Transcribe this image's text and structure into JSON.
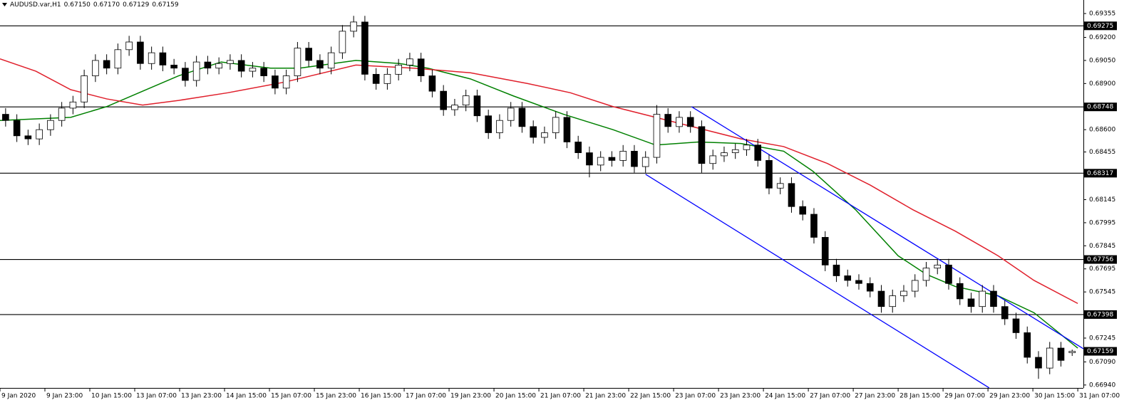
{
  "chart_data": {
    "type": "candlestick",
    "title": "AUDUSD.var,H1",
    "header_ohlc": [
      {
        "value": 0.6715,
        "label": "0.67150"
      },
      {
        "value": 0.6717,
        "label": "0.67170"
      },
      0.67129,
      0.67159
    ],
    "up_color": "#ffffff",
    "down_color": "#000000",
    "wick_color": "#000000",
    "open": [
      0.687,
      0.6866,
      0.6856,
      0.6854,
      0.686,
      0.6866,
      0.6874,
      0.6878,
      0.6895,
      0.6905,
      0.69,
      0.6912,
      0.6917,
      0.6903,
      0.691,
      0.6902,
      0.69,
      0.6892,
      0.6904,
      0.69,
      0.6903,
      0.6905,
      0.6898,
      0.69,
      0.6895,
      0.6887,
      0.6895,
      0.6913,
      0.6905,
      0.69,
      0.691,
      0.6924,
      0.693,
      0.6896,
      0.689,
      0.6896,
      0.6902,
      0.6906,
      0.6895,
      0.6885,
      0.6873,
      0.6876,
      0.6882,
      0.6869,
      0.6858,
      0.6866,
      0.6874,
      0.6862,
      0.6855,
      0.6858,
      0.6868,
      0.6852,
      0.6845,
      0.6837,
      0.6842,
      0.684,
      0.6846,
      0.6836,
      0.6842,
      0.687,
      0.6862,
      0.6868,
      0.6862,
      0.6838,
      0.6843,
      0.6845,
      0.6847,
      0.685,
      0.684,
      0.6822,
      0.6825,
      0.681,
      0.6805,
      0.679,
      0.6772,
      0.6765,
      0.6762,
      0.676,
      0.6755,
      0.6745,
      0.6752,
      0.6755,
      0.6762,
      0.677,
      0.6772,
      0.676,
      0.675,
      0.6745,
      0.6755,
      0.6745,
      0.6737,
      0.6728,
      0.6712,
      0.6705,
      0.6718,
      0.6715
    ],
    "high": [
      0.6874,
      0.687,
      0.686,
      0.6864,
      0.687,
      0.6878,
      0.6882,
      0.6899,
      0.6909,
      0.6909,
      0.6916,
      0.6921,
      0.6921,
      0.6914,
      0.6914,
      0.6906,
      0.6904,
      0.6908,
      0.6908,
      0.6907,
      0.6909,
      0.6909,
      0.6904,
      0.6904,
      0.6899,
      0.6899,
      0.6917,
      0.6917,
      0.6909,
      0.6914,
      0.6928,
      0.6934,
      0.6934,
      0.69,
      0.69,
      0.6906,
      0.691,
      0.691,
      0.6899,
      0.6889,
      0.688,
      0.6886,
      0.6886,
      0.6873,
      0.687,
      0.6878,
      0.6878,
      0.6866,
      0.6862,
      0.6872,
      0.6872,
      0.6856,
      0.6849,
      0.6846,
      0.6846,
      0.685,
      0.685,
      0.6846,
      0.6876,
      0.6874,
      0.6872,
      0.6872,
      0.6866,
      0.6847,
      0.6849,
      0.6851,
      0.6854,
      0.6854,
      0.6844,
      0.6829,
      0.6829,
      0.6814,
      0.6809,
      0.6794,
      0.6776,
      0.6769,
      0.6766,
      0.6764,
      0.6759,
      0.6756,
      0.6759,
      0.6766,
      0.6774,
      0.6776,
      0.6776,
      0.6764,
      0.6754,
      0.6759,
      0.6759,
      0.6749,
      0.6741,
      0.6732,
      0.6716,
      0.6722,
      0.6722,
      0.6717
    ],
    "low": [
      0.6862,
      0.6852,
      0.685,
      0.685,
      0.6856,
      0.6862,
      0.687,
      0.6874,
      0.6891,
      0.6896,
      0.6896,
      0.6908,
      0.6899,
      0.6899,
      0.6898,
      0.6896,
      0.6888,
      0.6888,
      0.6896,
      0.6896,
      0.6899,
      0.6894,
      0.6894,
      0.6891,
      0.6883,
      0.6883,
      0.6891,
      0.6901,
      0.6896,
      0.6896,
      0.6906,
      0.692,
      0.6892,
      0.6886,
      0.6886,
      0.6892,
      0.6898,
      0.6891,
      0.6881,
      0.6869,
      0.6869,
      0.6872,
      0.6865,
      0.6854,
      0.6854,
      0.6862,
      0.6858,
      0.6851,
      0.6851,
      0.6854,
      0.6848,
      0.6841,
      0.6829,
      0.6833,
      0.6836,
      0.6836,
      0.6832,
      0.6832,
      0.6838,
      0.6858,
      0.6858,
      0.6858,
      0.6832,
      0.6834,
      0.6839,
      0.6841,
      0.6843,
      0.6836,
      0.6818,
      0.6818,
      0.6806,
      0.6801,
      0.6786,
      0.6768,
      0.6761,
      0.6758,
      0.6756,
      0.6751,
      0.6741,
      0.6741,
      0.6748,
      0.6751,
      0.6758,
      0.6766,
      0.6756,
      0.6746,
      0.6741,
      0.6741,
      0.6741,
      0.6733,
      0.6724,
      0.6708,
      0.6698,
      0.6701,
      0.6706,
      0.67129
    ],
    "close": [
      0.6866,
      0.6856,
      0.6854,
      0.686,
      0.6866,
      0.6874,
      0.6878,
      0.6895,
      0.6905,
      0.69,
      0.6912,
      0.6917,
      0.6903,
      0.691,
      0.6902,
      0.69,
      0.6892,
      0.6904,
      0.69,
      0.6903,
      0.6905,
      0.6898,
      0.69,
      0.6895,
      0.6887,
      0.6895,
      0.6913,
      0.6905,
      0.69,
      0.691,
      0.6924,
      0.693,
      0.6896,
      0.689,
      0.6896,
      0.6902,
      0.6906,
      0.6895,
      0.6885,
      0.6873,
      0.6876,
      0.6882,
      0.6869,
      0.6858,
      0.6866,
      0.6874,
      0.6862,
      0.6855,
      0.6858,
      0.6868,
      0.6852,
      0.6845,
      0.6837,
      0.6842,
      0.684,
      0.6846,
      0.6836,
      0.6842,
      0.687,
      0.6862,
      0.6868,
      0.6862,
      0.6838,
      0.6843,
      0.6845,
      0.6847,
      0.685,
      0.684,
      0.6822,
      0.6825,
      0.681,
      0.6805,
      0.679,
      0.6772,
      0.6765,
      0.6762,
      0.676,
      0.6755,
      0.6745,
      0.6752,
      0.6755,
      0.6762,
      0.677,
      0.6772,
      0.676,
      0.675,
      0.6745,
      0.6755,
      0.6745,
      0.6737,
      0.6728,
      0.6712,
      0.6705,
      0.6718,
      0.671,
      0.67159
    ],
    "series": [
      {
        "color": "#008000",
        "x": [
          0,
          6.3,
          9.5,
          15.9,
          19.7,
          24.1,
          26.7,
          31.7,
          35.6,
          38.1,
          41.9,
          45.7,
          50.2,
          54.6,
          58.4,
          62.2,
          66,
          69.8,
          72.4,
          76.2,
          80,
          82.5,
          85.1,
          88.9,
          92.1,
          96
        ],
        "values": [
          0.6866,
          0.6868,
          0.6875,
          0.6895,
          0.6904,
          0.69,
          0.69,
          0.6905,
          0.6903,
          0.69,
          0.6893,
          0.6882,
          0.687,
          0.686,
          0.685,
          0.6852,
          0.6851,
          0.6846,
          0.6833,
          0.6808,
          0.6778,
          0.6766,
          0.6758,
          0.6752,
          0.6741,
          0.6718
        ]
      },
      {
        "color": "#e0202c",
        "x": [
          0,
          3.2,
          6.3,
          9.5,
          12.7,
          15.9,
          20.3,
          25.4,
          31.7,
          36.8,
          41.9,
          47,
          50.8,
          54.6,
          58.4,
          62.2,
          66,
          69.8,
          73.7,
          77.5,
          81.3,
          85.1,
          88.9,
          92.1,
          96
        ],
        "values": [
          0.6906,
          0.6898,
          0.6886,
          0.688,
          0.6876,
          0.6879,
          0.6884,
          0.6891,
          0.6902,
          0.69,
          0.6897,
          0.689,
          0.6884,
          0.6875,
          0.6868,
          0.6861,
          0.6854,
          0.6849,
          0.6838,
          0.6824,
          0.6808,
          0.6794,
          0.6778,
          0.6762,
          0.6747
        ]
      }
    ],
    "trendlines": [
      {
        "color": "#0000ff",
        "x": [
          61.6,
          96.5
        ],
        "y": [
          0.68749,
          0.67176
        ]
      },
      {
        "color": "#0000ff",
        "x": [
          57.5,
          88.1
        ],
        "y": [
          0.6831,
          0.66922
        ]
      }
    ],
    "levels": [
      0.69275,
      0.68748,
      0.68317,
      0.67756,
      0.67398
    ],
    "level_color": "#000000",
    "current_price": 0.67159,
    "xlim": [
      0,
      96.5
    ],
    "ylim": [
      0.66921,
      0.69443
    ],
    "xticks": [
      {
        "value": 0,
        "label": "9 Jan 2020"
      },
      {
        "value": 4,
        "label": "9 Jan 23:00"
      },
      {
        "value": 8,
        "label": "10 Jan 15:00"
      },
      {
        "value": 12,
        "label": "13 Jan 07:00"
      },
      {
        "value": 16,
        "label": "13 Jan 23:00"
      },
      {
        "value": 20,
        "label": "14 Jan 15:00"
      },
      {
        "value": 24,
        "label": "15 Jan 07:00"
      },
      {
        "value": 28,
        "label": "15 Jan 23:00"
      },
      {
        "value": 32,
        "label": "16 Jan 15:00"
      },
      {
        "value": 36,
        "label": "17 Jan 07:00"
      },
      {
        "value": 40,
        "label": "19 Jan 23:00"
      },
      {
        "value": 44,
        "label": "20 Jan 15:00"
      },
      {
        "value": 48,
        "label": "21 Jan 07:00"
      },
      {
        "value": 52,
        "label": "21 Jan 23:00"
      },
      {
        "value": 56,
        "label": "22 Jan 15:00"
      },
      {
        "value": 60,
        "label": "23 Jan 07:00"
      },
      {
        "value": 64,
        "label": "23 Jan 23:00"
      },
      {
        "value": 68,
        "label": "24 Jan 15:00"
      },
      {
        "value": 72,
        "label": "27 Jan 07:00"
      },
      {
        "value": 76,
        "label": "27 Jan 23:00"
      },
      {
        "value": 80,
        "label": "28 Jan 15:00"
      },
      {
        "value": 84,
        "label": "29 Jan 07:00"
      },
      {
        "value": 88,
        "label": "29 Jan 23:00"
      },
      {
        "value": 92,
        "label": "30 Jan 15:00"
      },
      {
        "value": 96,
        "label": "31 Jan 07:00"
      }
    ],
    "yticks": [
      0.69355,
      {
        "value": 0.692,
        "label": "0.69200"
      },
      {
        "value": 0.6905,
        "label": "0.69050"
      },
      {
        "value": 0.689,
        "label": "0.68900"
      },
      {
        "value": 0.686,
        "label": "0.68600"
      },
      0.68455,
      0.68145,
      0.67995,
      0.67845,
      0.67695,
      0.67545,
      0.67245,
      {
        "value": 0.6709,
        "label": "0.67090"
      },
      {
        "value": 0.6694,
        "label": "0.66940"
      }
    ]
  }
}
